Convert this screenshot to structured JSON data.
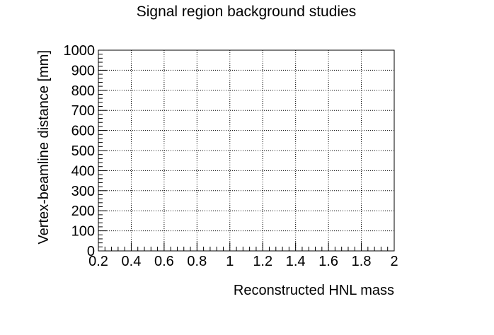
{
  "chart_data": {
    "type": "scatter",
    "title": "Signal region background studies",
    "xlabel": "Reconstructed HNL mass",
    "ylabel": "Vertex-beamline distance [mm]",
    "xlim": [
      0.2,
      2
    ],
    "ylim": [
      0,
      1000
    ],
    "x_ticks": [
      0.2,
      0.4,
      0.6,
      0.8,
      1,
      1.2,
      1.4,
      1.6,
      1.8,
      2
    ],
    "x_tick_labels": [
      "0.2",
      "0.4",
      "0.6",
      "0.8",
      "1",
      "1.2",
      "1.4",
      "1.6",
      "1.8",
      "2"
    ],
    "y_ticks": [
      0,
      100,
      200,
      300,
      400,
      500,
      600,
      700,
      800,
      900,
      1000
    ],
    "y_tick_labels": [
      "0",
      "100",
      "200",
      "300",
      "400",
      "500",
      "600",
      "700",
      "800",
      "900",
      "1000"
    ],
    "grid": true,
    "series": [],
    "colors": {
      "axis": "#000000",
      "grid": "#000000",
      "background": "#ffffff"
    }
  }
}
